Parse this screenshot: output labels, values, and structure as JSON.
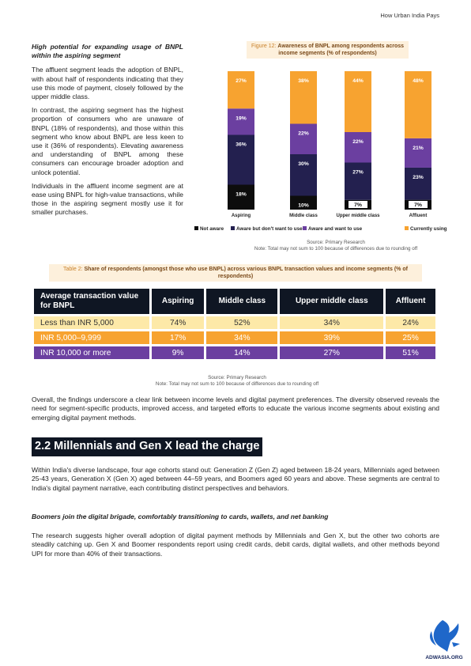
{
  "header": {
    "title": "How Urban India Pays"
  },
  "left_column": {
    "subheading": "High potential for expanding usage of BNPL within the aspiring segment",
    "paragraphs": [
      "The affluent segment leads the adoption of BNPL, with about half of respondents indicating that they use this mode of payment, closely followed by the upper middle class.",
      "In contrast, the aspiring segment has the highest proportion of consumers who are unaware of BNPL (18% of respondents), and those within this segment who know about BNPL are less keen to use it (36% of respondents). Elevating awareness and understanding of BNPL among these consumers can encourage broader adoption and unlock potential.",
      "Individuals in the affluent income segment are at ease using BNPL for high-value transactions, while those in the aspiring segment mostly use it for smaller purchases."
    ]
  },
  "figure": {
    "label": "Figure 12:",
    "title": "Awareness of BNPL among respondents across income segments (% of respondents)",
    "source": "Source: Primary Research",
    "note": "Note: Total may not sum to 100 because of differences due to rounding off"
  },
  "chart_data": {
    "type": "bar",
    "stacked": true,
    "categories": [
      "Aspiring",
      "Middle class",
      "Upper middle class",
      "Affluent"
    ],
    "series": [
      {
        "name": "Not aware",
        "values": [
          18,
          10,
          7,
          7
        ],
        "color": "#0d0d0d"
      },
      {
        "name": "Aware but don't want to use",
        "values": [
          36,
          30,
          27,
          23
        ],
        "color": "#23204f"
      },
      {
        "name": "Aware and want to use",
        "values": [
          19,
          22,
          22,
          21
        ],
        "color": "#6b3fa0"
      },
      {
        "name": "Currently using",
        "values": [
          27,
          38,
          44,
          48
        ],
        "color": "#f7a330"
      }
    ],
    "value_labels": [
      [
        "18%",
        "10%",
        "7%",
        "7%"
      ],
      [
        "36%",
        "30%",
        "27%",
        "23%"
      ],
      [
        "19%",
        "22%",
        "22%",
        "21%"
      ],
      [
        "27%",
        "38%",
        "44%",
        "48%"
      ]
    ],
    "legend_position": "bottom",
    "grid": false
  },
  "table": {
    "label": "Table 2:",
    "title": "Share of respondents (amongst those who use BNPL) across various BNPL transaction values and income segments (% of respondents)",
    "headers": [
      "Average transaction value for BNPL",
      "Aspiring",
      "Middle class",
      "Upper middle class",
      "Affluent"
    ],
    "rows": [
      [
        "Less than INR 5,000",
        "74%",
        "52%",
        "34%",
        "24%"
      ],
      [
        "INR 5,000–9,999",
        "17%",
        "34%",
        "39%",
        "25%"
      ],
      [
        "INR 10,000 or more",
        "9%",
        "14%",
        "27%",
        "51%"
      ]
    ],
    "row_colors": [
      "#fde9a8",
      "#f7a330",
      "#6b3fa0"
    ],
    "source": "Source: Primary Research",
    "note": "Note: Total may not sum to 100 because of differences due to rounding off"
  },
  "overall_paragraph": "Overall, the findings underscore a clear link between income levels and digital payment preferences. The diversity observed reveals the need for segment-specific products, improved access, and targeted efforts to educate the various income segments about existing and emerging digital payment methods.",
  "section": {
    "title": "2.2 Millennials and Gen X lead the charge",
    "intro": "Within India's diverse landscape, four age cohorts stand out: Generation Z (Gen Z) aged between 18-24 years, Millennials aged between 25-43 years, Generation X (Gen X) aged between 44–59 years, and Boomers aged 60 years and above. These segments are central to India's digital payment narrative, each contributing distinct perspectives and behaviors.",
    "subheading": "Boomers join the digital brigade, comfortably transitioning to cards, wallets, and net banking",
    "body": "The research suggests higher overall adoption of digital payment methods by Millennials and Gen X, but the other two cohorts are steadily catching up. Gen X and Boomer respondents report using credit cards, debit cards, digital wallets, and other methods beyond UPI for more than 40% of their transactions."
  },
  "watermark": {
    "text": "ADWASIA.ORG"
  }
}
